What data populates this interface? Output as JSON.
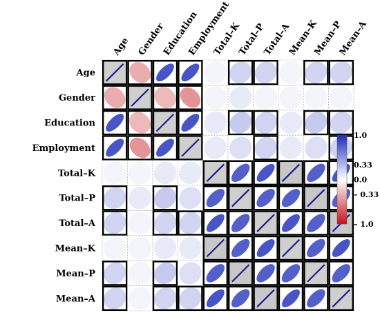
{
  "chart_data": {
    "type": "heatmap",
    "subtype": "ellipse-correlogram",
    "variables": [
      "Age",
      "Gender",
      "Education",
      "Employment",
      "Total–K",
      "Total–P",
      "Total–A",
      "Mean–K",
      "Mean–P",
      "Mean–A"
    ],
    "matrix": [
      [
        1.0,
        -0.35,
        0.8,
        0.8,
        0.05,
        0.2,
        0.2,
        0.05,
        0.2,
        0.2
      ],
      [
        -0.35,
        1.0,
        -0.3,
        -0.45,
        0.05,
        0.1,
        0.05,
        0.05,
        0.05,
        0.05
      ],
      [
        0.8,
        -0.3,
        1.0,
        0.8,
        0.1,
        0.25,
        0.2,
        0.1,
        0.25,
        0.2
      ],
      [
        0.8,
        -0.45,
        0.8,
        1.0,
        0.1,
        0.15,
        0.2,
        0.1,
        0.15,
        0.2
      ],
      [
        0.05,
        0.05,
        0.1,
        0.1,
        1.0,
        0.75,
        0.8,
        1.0,
        0.75,
        0.8
      ],
      [
        0.2,
        0.1,
        0.25,
        0.15,
        0.75,
        1.0,
        0.75,
        0.75,
        1.0,
        0.75
      ],
      [
        0.2,
        0.05,
        0.2,
        0.2,
        0.8,
        0.75,
        1.0,
        0.8,
        0.75,
        1.0
      ],
      [
        0.05,
        0.05,
        0.1,
        0.1,
        1.0,
        0.75,
        0.8,
        1.0,
        0.75,
        0.8
      ],
      [
        0.2,
        0.05,
        0.25,
        0.15,
        0.75,
        1.0,
        0.75,
        0.75,
        1.0,
        0.75
      ],
      [
        0.2,
        0.05,
        0.2,
        0.2,
        0.8,
        0.75,
        1.0,
        0.8,
        0.75,
        1.0
      ]
    ],
    "significant": [
      [
        true,
        true,
        true,
        true,
        false,
        true,
        true,
        false,
        true,
        true
      ],
      [
        true,
        true,
        true,
        true,
        false,
        false,
        false,
        false,
        false,
        false
      ],
      [
        true,
        true,
        true,
        true,
        false,
        true,
        true,
        false,
        true,
        true
      ],
      [
        true,
        true,
        true,
        true,
        false,
        false,
        true,
        false,
        false,
        true
      ],
      [
        false,
        false,
        false,
        false,
        true,
        true,
        true,
        true,
        true,
        true
      ],
      [
        true,
        false,
        true,
        false,
        true,
        true,
        true,
        true,
        true,
        true
      ],
      [
        true,
        false,
        true,
        true,
        true,
        true,
        true,
        true,
        true,
        true
      ],
      [
        false,
        false,
        false,
        false,
        true,
        true,
        true,
        true,
        true,
        true
      ],
      [
        true,
        false,
        true,
        false,
        true,
        true,
        true,
        true,
        true,
        true
      ],
      [
        true,
        false,
        true,
        true,
        true,
        true,
        true,
        true,
        true,
        true
      ]
    ],
    "colorbar": {
      "range": [
        -1.0,
        1.0
      ],
      "ticks": [
        "1.0",
        "0.33",
        "0.0",
        "– 0.33",
        "– 1.0"
      ],
      "tick_values": [
        1.0,
        0.33,
        0.0,
        -0.33,
        -1.0
      ],
      "colors": {
        "positive": "#1b2bb8",
        "zero": "#ffffff",
        "negative": "#c4141b"
      }
    },
    "legend_placement": "right"
  }
}
